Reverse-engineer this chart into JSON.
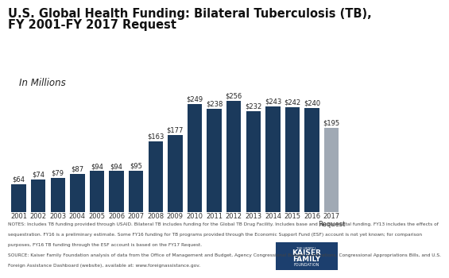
{
  "years": [
    "2001",
    "2002",
    "2003",
    "2004",
    "2005",
    "2006",
    "2007",
    "2008",
    "2009",
    "2010",
    "2011",
    "2012",
    "2013",
    "2014",
    "2015",
    "2016",
    "2017\nRequest"
  ],
  "values": [
    64,
    74,
    79,
    87,
    94,
    94,
    95,
    163,
    177,
    249,
    238,
    256,
    232,
    243,
    242,
    240,
    195
  ],
  "labels": [
    "$64",
    "$74",
    "$79",
    "$87",
    "$94",
    "$94",
    "$95",
    "$163",
    "$177",
    "$249",
    "$238",
    "$256",
    "$232",
    "$243",
    "$242",
    "$240",
    "$195"
  ],
  "bar_colors": [
    "#1b3a5c",
    "#1b3a5c",
    "#1b3a5c",
    "#1b3a5c",
    "#1b3a5c",
    "#1b3a5c",
    "#1b3a5c",
    "#1b3a5c",
    "#1b3a5c",
    "#1b3a5c",
    "#1b3a5c",
    "#1b3a5c",
    "#1b3a5c",
    "#1b3a5c",
    "#1b3a5c",
    "#1b3a5c",
    "#a0a9b4"
  ],
  "title_line1": "U.S. Global Health Funding: Bilateral Tuberculosis (TB),",
  "title_line2": "FY 2001-FY 2017 Request",
  "subtitle": "In Millions",
  "ylim": [
    0,
    295
  ],
  "background_color": "#ffffff",
  "notes_line1": "NOTES: Includes TB funding provided through USAID. Bilateral TB includes funding for the Global TB Drug Facility. Includes base and supplemental funding. FY13 includes the effects of",
  "notes_line2": "sequestration. FY16 is a preliminary estimate. Some FY16 funding for TB programs provided through the Economic Support Fund (ESF) account is not yet known; for comparison",
  "notes_line3": "purposes, FY16 TB funding through the ESF account is based on the FY17 Request.",
  "notes_line4": "SOURCE: Kaiser Family Foundation analysis of data from the Office of Management and Budget, Agency Congressional Budget Justifications, Congressional Appropriations Bills, and U.S.",
  "notes_line5": "Foreign Assistance Dashboard (website), available at: www.foreignassistance.gov.",
  "title_fontsize": 10.5,
  "subtitle_fontsize": 8.5,
  "label_fontsize": 6.0,
  "tick_fontsize": 6.0,
  "notes_fontsize": 4.2,
  "logo_text1": "KAISER",
  "logo_text2": "FAMILY",
  "logo_bg": "#1c3f6e"
}
